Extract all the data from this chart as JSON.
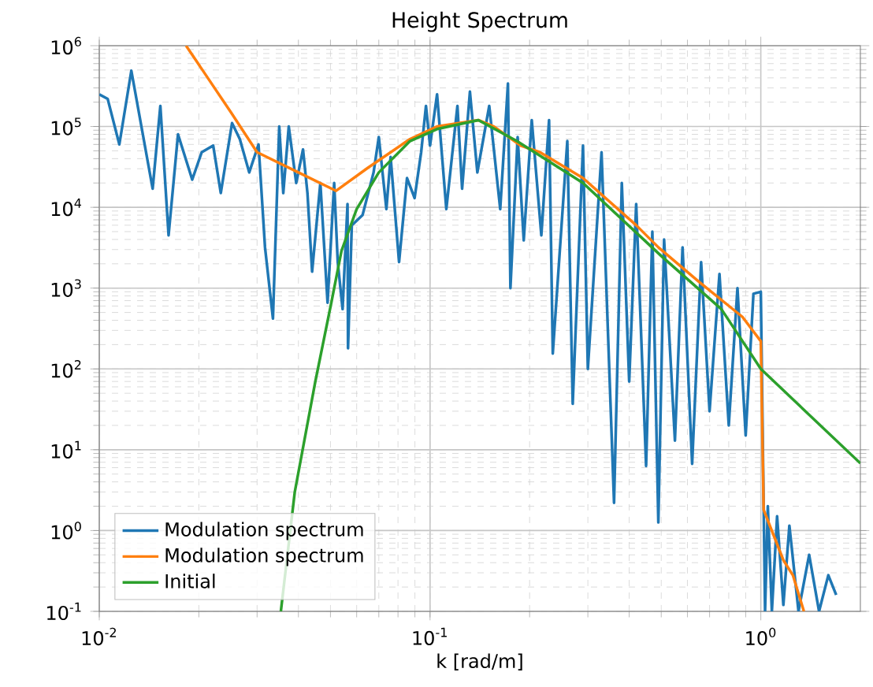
{
  "chart_data": {
    "type": "line",
    "title": "Height Spectrum",
    "xlabel": "k [rad/m]",
    "log": "xy",
    "grid": true,
    "legend": "bottom left",
    "xlim": [
      0.01,
      2
    ],
    "ylim": [
      0.1,
      1000000
    ],
    "xticks": [
      {
        "value": 0.01,
        "label": "10$^{-2}$"
      },
      {
        "value": 0.1,
        "label": "10$^{-1}$"
      },
      {
        "value": 1,
        "label": "10$^{0}$"
      }
    ],
    "yticks": [
      {
        "value": 0.1,
        "label": "10$^{-1}$"
      },
      {
        "value": 1,
        "label": "10$^{0}$"
      },
      {
        "value": 10,
        "label": "10$^{1}$"
      },
      {
        "value": 100,
        "label": "10$^{2}$"
      },
      {
        "value": 1000,
        "label": "10$^{3}$"
      },
      {
        "value": 10000,
        "label": "10$^{4}$"
      },
      {
        "value": 100000,
        "label": "10$^{5}$"
      },
      {
        "value": 1000000,
        "label": "10$^{6}$"
      }
    ],
    "series": [
      {
        "name": "Modulation spectrum",
        "color": "#1f77b4",
        "x": [
          0.01,
          0.0106,
          0.0115,
          0.0125,
          0.0145,
          0.0153,
          0.0162,
          0.0173,
          0.0191,
          0.0204,
          0.0221,
          0.0233,
          0.0252,
          0.0266,
          0.0284,
          0.0303,
          0.0317,
          0.0335,
          0.035,
          0.036,
          0.0374,
          0.0394,
          0.0413,
          0.0426,
          0.044,
          0.0466,
          0.049,
          0.0513,
          0.0526,
          0.0544,
          0.0563,
          0.0565,
          0.058,
          0.0625,
          0.0675,
          0.07,
          0.0738,
          0.076,
          0.0806,
          0.0852,
          0.0898,
          0.094,
          0.0972,
          0.1,
          0.105,
          0.112,
          0.121,
          0.125,
          0.132,
          0.139,
          0.151,
          0.163,
          0.172,
          0.175,
          0.184,
          0.192,
          0.203,
          0.217,
          0.229,
          0.235,
          0.26,
          0.27,
          0.29,
          0.3,
          0.33,
          0.36,
          0.38,
          0.4,
          0.42,
          0.45,
          0.47,
          0.49,
          0.51,
          0.55,
          0.58,
          0.62,
          0.66,
          0.7,
          0.75,
          0.8,
          0.85,
          0.9,
          0.95,
          1.0,
          1.03,
          1.05,
          1.08,
          1.12,
          1.17,
          1.22,
          1.3,
          1.4,
          1.5,
          1.6,
          1.69
        ],
        "values": [
          250000,
          220000,
          60000,
          490000,
          17000,
          180000,
          4500,
          80000,
          22000,
          48000,
          58000,
          15000,
          110000,
          70000,
          27000,
          60000,
          3200,
          420,
          100000,
          15000,
          100000,
          20000,
          52000,
          15000,
          1600,
          20000,
          660,
          20000,
          2100,
          550,
          11000,
          180,
          6000,
          8000,
          27000,
          74000,
          9500,
          42000,
          2100,
          23000,
          13000,
          48000,
          180000,
          58000,
          250000,
          9500,
          180000,
          17000,
          270000,
          27000,
          180000,
          9500,
          340000,
          1000,
          74000,
          3900,
          120000,
          4500,
          120000,
          155,
          66000,
          37,
          58000,
          100,
          48000,
          2.2,
          20000,
          70,
          11000,
          6.3,
          5000,
          1.26,
          4000,
          13,
          3200,
          6.7,
          2100,
          30,
          1500,
          20,
          1000,
          15,
          850,
          900,
          0.1,
          2,
          0.1,
          1.5,
          0.12,
          1.15,
          0.1,
          0.5,
          0.1,
          0.28,
          0.16
        ]
      },
      {
        "name": "Modulation spectrum",
        "color": "#ff7f0e",
        "x": [
          0.0183,
          0.025,
          0.03,
          0.04,
          0.052,
          0.065,
          0.087,
          0.105,
          0.14,
          0.156,
          0.188,
          0.215,
          0.29,
          0.42,
          0.49,
          0.65,
          0.88,
          1.0,
          1.02,
          1.17,
          1.25,
          1.35
        ],
        "values": [
          1000000,
          150000,
          48000,
          27000,
          16000,
          31000,
          70000,
          100000,
          120000,
          100000,
          58000,
          48000,
          23000,
          6000,
          3200,
          1200,
          440,
          220,
          1.8,
          0.43,
          0.28,
          0.1
        ]
      },
      {
        "name": "Initial",
        "color": "#2ca02c",
        "x": [
          0.0354,
          0.039,
          0.045,
          0.0503,
          0.054,
          0.06,
          0.07,
          0.087,
          0.105,
          0.14,
          0.183,
          0.29,
          0.5,
          0.76,
          1.0,
          2.0
        ],
        "values": [
          0.1,
          3,
          70,
          660,
          2900,
          9500,
          27000,
          66000,
          93000,
          120000,
          66000,
          20000,
          2500,
          550,
          100,
          6.8
        ]
      }
    ]
  }
}
